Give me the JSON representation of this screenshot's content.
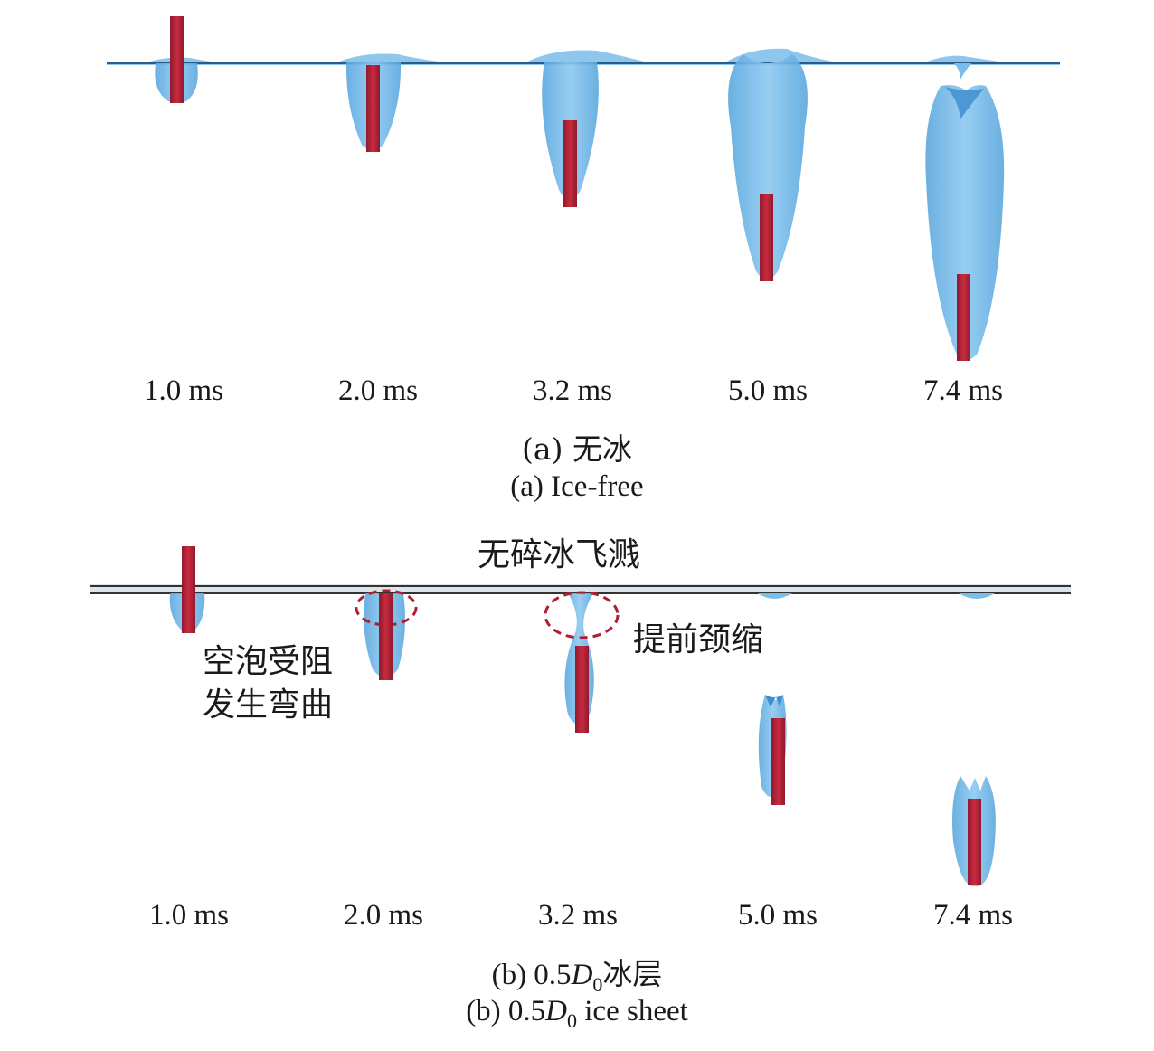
{
  "panel_a": {
    "times": [
      "1.0 ms",
      "2.0 ms",
      "3.2 ms",
      "5.0 ms",
      "7.4 ms"
    ],
    "caption_zh": "(a) 无冰",
    "caption_en": "(a) Ice-free"
  },
  "panel_b": {
    "times": [
      "1.0 ms",
      "2.0 ms",
      "3.2 ms",
      "5.0 ms",
      "7.4 ms"
    ],
    "caption_zh_prefix": "(b) 0.5",
    "caption_zh_var": "D",
    "caption_zh_sub": "0",
    "caption_zh_suffix": "冰层",
    "caption_en_prefix": "(b) 0.5",
    "caption_en_var": "D",
    "caption_en_sub": "0",
    "caption_en_suffix": " ice sheet",
    "annotation_no_splash": "无碎冰飞溅",
    "annotation_bent_line1": "空泡受阻",
    "annotation_bent_line2": "发生弯曲",
    "annotation_necking": "提前颈缩"
  },
  "colors": {
    "cavity": "#6fb5e6",
    "cavity_edge": "#4a9bd6",
    "projectile": "#b3213a",
    "projectile_highlight": "#e0404a",
    "waterline": "#2b5d86",
    "ice_line": "#333333",
    "dashed_circle": "#b01e2e"
  }
}
